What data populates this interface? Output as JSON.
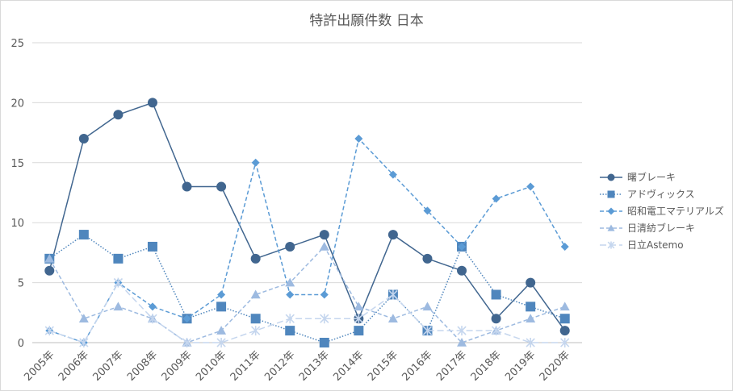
{
  "chart_data": {
    "type": "line",
    "title": "特許出願件数 日本",
    "xlabel": "",
    "ylabel": "",
    "categories": [
      "2005年",
      "2006年",
      "2007年",
      "2008年",
      "2009年",
      "2010年",
      "2011年",
      "2012年",
      "2013年",
      "2014年",
      "2015年",
      "2016年",
      "2017年",
      "2018年",
      "2019年",
      "2020年"
    ],
    "ylim": [
      0,
      25
    ],
    "yticks": [
      0,
      5,
      10,
      15,
      20,
      25
    ],
    "grid": true,
    "legend_position": "right",
    "series": [
      {
        "name": "曙ブレーキ",
        "values": [
          6,
          17,
          19,
          20,
          13,
          13,
          7,
          8,
          9,
          2,
          9,
          7,
          6,
          2,
          5,
          1
        ],
        "color": "#41668f",
        "line": "solid",
        "marker": "circle"
      },
      {
        "name": "アドヴィックス",
        "values": [
          7,
          9,
          7,
          8,
          2,
          3,
          2,
          1,
          0,
          1,
          4,
          1,
          8,
          4,
          3,
          2
        ],
        "color": "#4f86bd",
        "line": "dotted",
        "marker": "square"
      },
      {
        "name": "昭和電工マテリアルズ",
        "values": [
          1,
          0,
          5,
          3,
          2,
          4,
          15,
          4,
          4,
          17,
          14,
          11,
          8,
          12,
          13,
          8
        ],
        "color": "#5b9bd5",
        "line": "dashed",
        "marker": "diamond"
      },
      {
        "name": "日清紡ブレーキ",
        "values": [
          7,
          2,
          3,
          2,
          0,
          1,
          4,
          5,
          8,
          3,
          2,
          3,
          0,
          1,
          2,
          3
        ],
        "color": "#9dbae0",
        "line": "dashed",
        "marker": "triangle"
      },
      {
        "name": "日立Astemo",
        "values": [
          1,
          0,
          5,
          2,
          0,
          0,
          1,
          2,
          2,
          2,
          4,
          1,
          1,
          1,
          0,
          0
        ],
        "color": "#c5d6ee",
        "line": "longdash",
        "marker": "star"
      }
    ]
  }
}
